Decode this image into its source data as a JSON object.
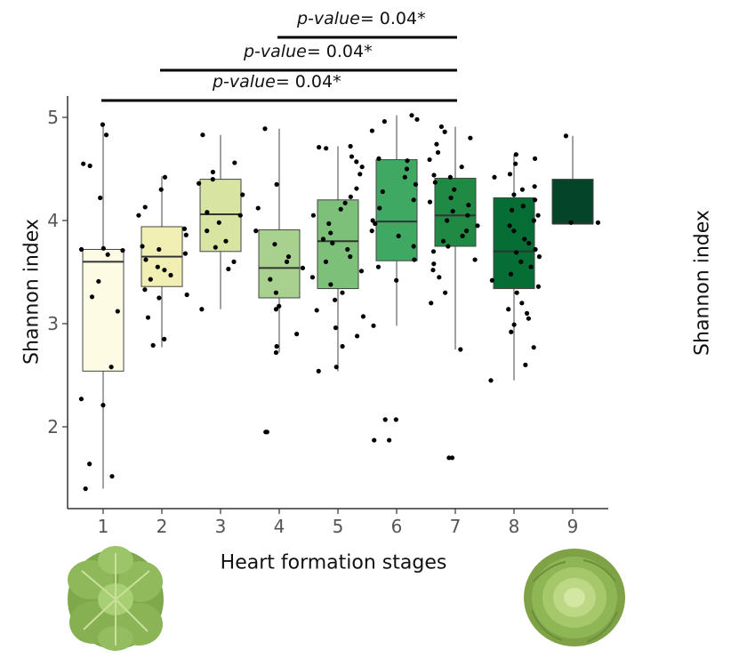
{
  "chart_data": {
    "type": "boxplot",
    "xlabel": "Heart formation stages",
    "ylabel": "Shannon index",
    "ylabel_right": "Shannon index",
    "categories": [
      "1",
      "2",
      "3",
      "4",
      "5",
      "6",
      "7",
      "8",
      "9"
    ],
    "yticks": [
      2,
      3,
      4,
      5
    ],
    "ylim": [
      1.35,
      5.1
    ],
    "grid": false,
    "boxes": [
      {
        "stage": "1",
        "min": 1.4,
        "q1": 2.54,
        "median": 3.6,
        "q3": 3.72,
        "max": 4.93,
        "fill": "#fdfbe3",
        "points": [
          4.93,
          4.83,
          4.55,
          4.53,
          4.22,
          3.73,
          3.72,
          3.71,
          3.67,
          3.41,
          3.26,
          3.12,
          2.58,
          2.27,
          2.21,
          1.64,
          1.52,
          1.4
        ]
      },
      {
        "stage": "2",
        "min": 2.77,
        "q1": 3.36,
        "median": 3.65,
        "q3": 3.94,
        "max": 4.43,
        "fill": "#f2efb5",
        "points": [
          4.42,
          4.3,
          4.13,
          4.05,
          3.92,
          3.86,
          3.75,
          3.72,
          3.68,
          3.62,
          3.55,
          3.52,
          3.47,
          3.43,
          3.33,
          3.28,
          3.25,
          3.06,
          2.85,
          2.79
        ]
      },
      {
        "stage": "3",
        "min": 3.14,
        "q1": 3.7,
        "median": 4.06,
        "q3": 4.4,
        "max": 4.83,
        "fill": "#d8e4a2",
        "points": [
          4.83,
          4.56,
          4.47,
          4.4,
          4.36,
          4.25,
          4.08,
          4.05,
          3.98,
          3.9,
          3.8,
          3.74,
          3.6,
          3.53,
          3.14
        ]
      },
      {
        "stage": "4",
        "min": 2.72,
        "q1": 3.25,
        "median": 3.54,
        "q3": 3.91,
        "max": 4.89,
        "fill": "#a8d08f",
        "points": [
          4.89,
          4.35,
          4.12,
          3.9,
          3.77,
          3.65,
          3.6,
          3.54,
          3.43,
          3.3,
          3.17,
          3.14,
          2.9,
          2.78,
          2.72,
          1.95,
          1.95
        ]
      },
      {
        "stage": "5",
        "min": 2.54,
        "q1": 3.34,
        "median": 3.8,
        "q3": 4.2,
        "max": 4.72,
        "fill": "#7cc07a",
        "points": [
          4.72,
          4.71,
          4.7,
          4.62,
          4.57,
          4.52,
          4.45,
          4.31,
          4.23,
          4.17,
          4.11,
          4.05,
          3.97,
          3.88,
          3.82,
          3.78,
          3.72,
          3.65,
          3.6,
          3.51,
          3.45,
          3.38,
          3.3,
          3.23,
          3.13,
          3.07,
          2.96,
          2.88,
          2.78,
          2.58,
          2.54
        ]
      },
      {
        "stage": "6",
        "min": 2.98,
        "q1": 3.61,
        "median": 3.99,
        "q3": 4.59,
        "max": 5.02,
        "fill": "#3fa862",
        "points": [
          5.02,
          4.98,
          4.96,
          4.87,
          4.6,
          4.58,
          4.5,
          4.42,
          4.35,
          4.28,
          4.2,
          4.12,
          4.0,
          3.97,
          3.9,
          3.85,
          3.75,
          3.62,
          3.55,
          3.42,
          2.98,
          2.07,
          2.07,
          1.87,
          1.87
        ]
      },
      {
        "stage": "7",
        "min": 2.75,
        "q1": 3.75,
        "median": 4.05,
        "q3": 4.41,
        "max": 4.91,
        "fill": "#208a45",
        "points": [
          4.91,
          4.86,
          4.8,
          4.74,
          4.66,
          4.59,
          4.52,
          4.44,
          4.42,
          4.37,
          4.3,
          4.22,
          4.18,
          4.15,
          4.09,
          4.05,
          4.0,
          3.95,
          3.9,
          3.85,
          3.8,
          3.75,
          3.7,
          3.62,
          3.58,
          3.52,
          3.45,
          3.3,
          3.2,
          2.75,
          1.7,
          1.7
        ]
      },
      {
        "stage": "8",
        "min": 2.45,
        "q1": 3.34,
        "median": 3.7,
        "q3": 4.22,
        "max": 4.64,
        "fill": "#066d35",
        "points": [
          4.64,
          4.6,
          4.55,
          4.45,
          4.42,
          4.33,
          4.3,
          4.25,
          4.2,
          4.14,
          4.1,
          4.05,
          4.0,
          3.95,
          3.9,
          3.82,
          3.78,
          3.72,
          3.69,
          3.65,
          3.6,
          3.55,
          3.48,
          3.42,
          3.36,
          3.3,
          3.2,
          3.14,
          3.1,
          3.05,
          2.99,
          2.92,
          2.77,
          2.6,
          2.45
        ]
      },
      {
        "stage": "9",
        "min": 3.97,
        "q1": 3.97,
        "median": 3.97,
        "q3": 4.4,
        "max": 4.82,
        "fill": "#04452a",
        "points": [
          4.82,
          3.98,
          3.98
        ]
      }
    ],
    "annotations": [
      {
        "text_italic": "p-value",
        "text_rest": "= 0.04*",
        "from": "1",
        "to": "7"
      },
      {
        "text_italic": "p-value",
        "text_rest": "= 0.04*",
        "from": "2",
        "to": "7"
      },
      {
        "text_italic": "p-value",
        "text_rest": "= 0.04*",
        "from": "4",
        "to": "7"
      }
    ]
  },
  "images": [
    {
      "name": "lettuce-open-icon",
      "caption": ""
    },
    {
      "name": "lettuce-headed-icon",
      "caption": ""
    }
  ]
}
